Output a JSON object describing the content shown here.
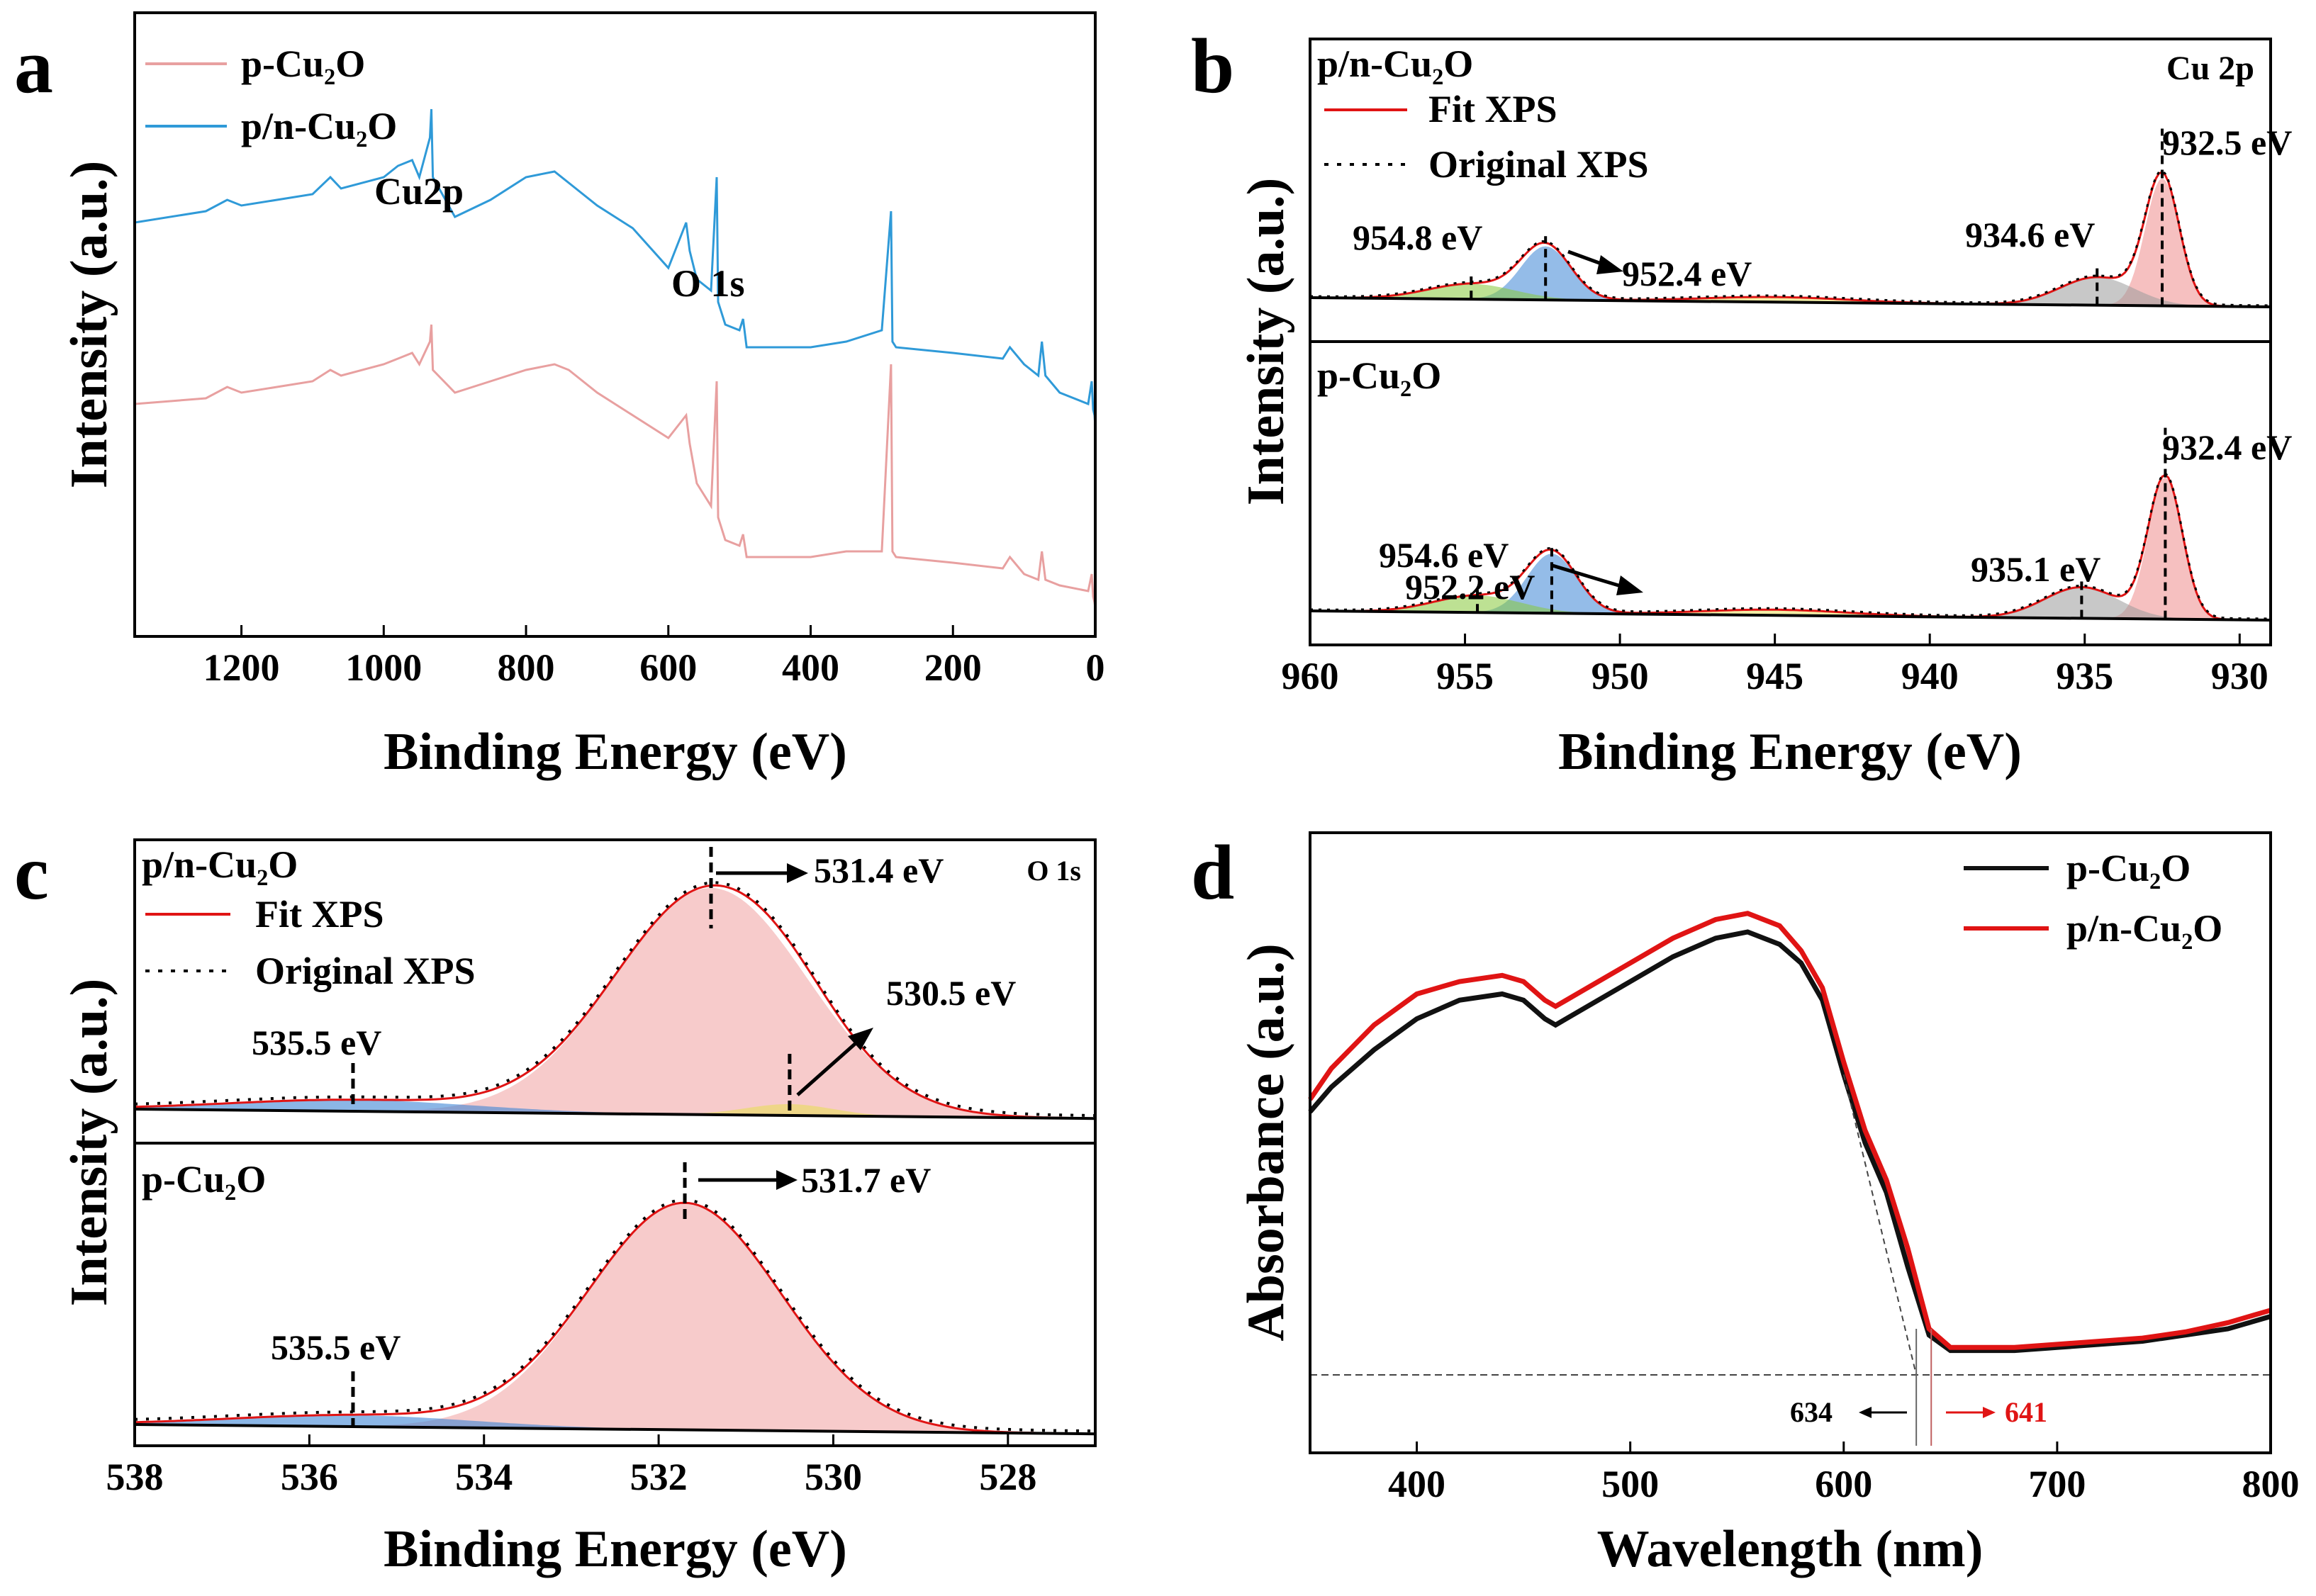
{
  "figure": {
    "panel_labels": [
      "a",
      "b",
      "c",
      "d"
    ]
  },
  "chart_data": [
    {
      "panel": "a",
      "type": "line",
      "title": "",
      "xlabel": "Binding Energy (eV)",
      "ylabel": "Intensity (a.u.)",
      "xlim": [
        1350,
        0
      ],
      "xticks": [
        1200,
        1000,
        800,
        600,
        400,
        200,
        0
      ],
      "xtick_labels": [
        "1200",
        "1000",
        "800",
        "600",
        "400",
        "200",
        "0"
      ],
      "legend": [
        "p-Cu2O",
        "p/n-Cu2O"
      ],
      "legend_labels": [
        "p-Cu₂O",
        "p/n-Cu₂O"
      ],
      "colors": [
        "#e8a0a0",
        "#2f9ad8"
      ],
      "annotations": [
        "Cu2p",
        "O 1s"
      ],
      "series": [
        {
          "name": "p/n-Cu2O",
          "x": [
            1350,
            1250,
            1220,
            1200,
            1100,
            1075,
            1060,
            1000,
            980,
            960,
            950,
            935,
            933,
            931,
            900,
            850,
            800,
            760,
            740,
            700,
            650,
            600,
            575,
            570,
            560,
            540,
            532,
            530,
            520,
            500,
            495,
            490,
            420,
            400,
            350,
            300,
            287,
            285,
            280,
            200,
            130,
            120,
            100,
            80,
            75,
            70,
            50,
            10,
            5,
            3,
            1,
            0
          ],
          "y": [
            0.58,
            0.6,
            0.62,
            0.61,
            0.63,
            0.66,
            0.64,
            0.66,
            0.68,
            0.69,
            0.66,
            0.73,
            0.78,
            0.66,
            0.59,
            0.62,
            0.66,
            0.67,
            0.65,
            0.61,
            0.57,
            0.5,
            0.58,
            0.53,
            0.48,
            0.46,
            0.66,
            0.44,
            0.4,
            0.39,
            0.41,
            0.36,
            0.36,
            0.36,
            0.37,
            0.39,
            0.6,
            0.37,
            0.36,
            0.35,
            0.34,
            0.36,
            0.33,
            0.31,
            0.37,
            0.31,
            0.28,
            0.26,
            0.3,
            0.25,
            0.24,
            0.22
          ]
        },
        {
          "name": "p-Cu2O",
          "x": [
            1350,
            1250,
            1220,
            1200,
            1100,
            1075,
            1060,
            1000,
            980,
            960,
            950,
            935,
            933,
            931,
            900,
            850,
            800,
            760,
            740,
            700,
            650,
            600,
            575,
            570,
            560,
            540,
            532,
            530,
            520,
            500,
            495,
            490,
            420,
            400,
            350,
            300,
            287,
            285,
            280,
            200,
            130,
            120,
            100,
            80,
            75,
            70,
            50,
            10,
            5,
            3,
            1,
            0
          ],
          "y": [
            0.26,
            0.27,
            0.29,
            0.28,
            0.3,
            0.32,
            0.31,
            0.33,
            0.34,
            0.35,
            0.33,
            0.37,
            0.4,
            0.32,
            0.28,
            0.3,
            0.32,
            0.33,
            0.32,
            0.28,
            0.24,
            0.2,
            0.24,
            0.19,
            0.12,
            0.08,
            0.3,
            0.06,
            0.02,
            0.01,
            0.03,
            -0.01,
            -0.01,
            -0.01,
            0.0,
            0.0,
            0.33,
            0.0,
            -0.01,
            -0.02,
            -0.03,
            -0.01,
            -0.04,
            -0.05,
            0.0,
            -0.05,
            -0.06,
            -0.07,
            -0.04,
            -0.08,
            -0.09,
            -0.1
          ]
        }
      ]
    },
    {
      "panel": "b",
      "type": "line",
      "title": "Cu 2p",
      "xlabel": "Binding Energy (eV)",
      "ylabel": "Intensity (a.u.)",
      "xlim": [
        960,
        929
      ],
      "xticks": [
        960,
        955,
        950,
        945,
        940,
        935,
        930
      ],
      "xtick_labels": [
        "960",
        "955",
        "950",
        "945",
        "940",
        "935",
        "930"
      ],
      "legend": [
        "Fit XPS",
        "Original XPS"
      ],
      "subplots": [
        {
          "label": "p/n-Cu2O",
          "label_display": "p/n-Cu₂O",
          "peaks_eV": [
            932.5,
            934.6,
            952.4,
            954.8
          ],
          "annotations": [
            "932.5 eV",
            "934.6 eV",
            "954.8 eV",
            "952.4 eV"
          ]
        },
        {
          "label": "p-Cu2O",
          "label_display": "p-Cu₂O",
          "peaks_eV": [
            932.4,
            935.1,
            952.2,
            954.6
          ],
          "annotations": [
            "932.4 eV",
            "935.1 eV",
            "954.6 eV",
            "952.2 eV"
          ]
        }
      ]
    },
    {
      "panel": "c",
      "type": "line",
      "title": "O 1s",
      "xlabel": "Binding Energy (eV)",
      "ylabel": "Intensity (a.u.)",
      "xlim": [
        538,
        527
      ],
      "xticks": [
        538,
        536,
        534,
        532,
        530,
        528
      ],
      "xtick_labels": [
        "538",
        "536",
        "534",
        "532",
        "530",
        "528"
      ],
      "legend": [
        "Fit XPS",
        "Original XPS"
      ],
      "subplots": [
        {
          "label": "p/n-Cu2O",
          "label_display": "p/n-Cu₂O",
          "peaks_eV": [
            531.4,
            530.5,
            535.5
          ],
          "annotations": [
            "531.4 eV",
            "530.5 eV",
            "535.5 eV"
          ]
        },
        {
          "label": "p-Cu2O",
          "label_display": "p-Cu₂O",
          "peaks_eV": [
            531.7,
            535.5
          ],
          "annotations": [
            "531.7 eV",
            "535.5 eV"
          ]
        }
      ]
    },
    {
      "panel": "d",
      "type": "line",
      "title": "",
      "xlabel": "Wavelength (nm)",
      "ylabel": "Absorbance (a.u.)",
      "xlim": [
        350,
        800
      ],
      "xticks": [
        400,
        500,
        600,
        700,
        800
      ],
      "xtick_labels": [
        "400",
        "500",
        "600",
        "700",
        "800"
      ],
      "legend": [
        "p-Cu2O",
        "p/n-Cu2O"
      ],
      "legend_labels": [
        "p-Cu₂O",
        "p/n-Cu₂O"
      ],
      "colors": [
        "#111111",
        "#e01414"
      ],
      "band_edge_nm": {
        "p-Cu2O": 634,
        "p/n-Cu2O": 641
      },
      "annotations": [
        "634",
        "641"
      ],
      "series": [
        {
          "name": "p-Cu2O",
          "x": [
            350,
            360,
            380,
            400,
            420,
            440,
            450,
            460,
            465,
            470,
            480,
            500,
            520,
            540,
            555,
            570,
            580,
            590,
            600,
            610,
            620,
            630,
            640,
            650,
            660,
            680,
            700,
            720,
            740,
            760,
            780,
            800
          ],
          "y": [
            0.6,
            0.64,
            0.7,
            0.75,
            0.78,
            0.79,
            0.78,
            0.75,
            0.74,
            0.75,
            0.77,
            0.81,
            0.85,
            0.88,
            0.89,
            0.87,
            0.84,
            0.78,
            0.66,
            0.55,
            0.47,
            0.35,
            0.24,
            0.215,
            0.215,
            0.215,
            0.22,
            0.225,
            0.23,
            0.24,
            0.25,
            0.27
          ]
        },
        {
          "name": "p/n-Cu2O",
          "x": [
            350,
            360,
            380,
            400,
            420,
            440,
            450,
            460,
            465,
            470,
            480,
            500,
            520,
            540,
            555,
            570,
            580,
            590,
            600,
            610,
            620,
            630,
            640,
            650,
            660,
            680,
            700,
            720,
            740,
            760,
            780,
            800
          ],
          "y": [
            0.62,
            0.67,
            0.74,
            0.79,
            0.81,
            0.82,
            0.81,
            0.78,
            0.77,
            0.78,
            0.8,
            0.84,
            0.88,
            0.91,
            0.92,
            0.9,
            0.86,
            0.8,
            0.68,
            0.57,
            0.49,
            0.38,
            0.25,
            0.22,
            0.22,
            0.22,
            0.225,
            0.23,
            0.235,
            0.245,
            0.26,
            0.28
          ]
        }
      ]
    }
  ]
}
